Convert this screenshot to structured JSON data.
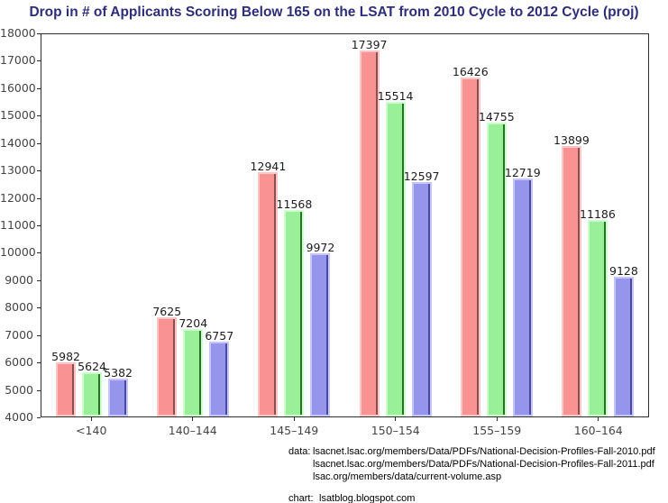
{
  "title": "Drop in # of Applicants Scoring Below 165 on the LSAT from 2010 Cycle to 2012 Cycle (proj)",
  "colors": {
    "title": "#2E2E78",
    "axis": "#2e2e2e",
    "tick_label": "#444444",
    "bar_value_label": "#1c1c1c"
  },
  "chart_data": {
    "type": "bar",
    "title": "Drop in # of Applicants Scoring Below 165 on the LSAT from 2010 Cycle to 2012 Cycle (proj)",
    "categories": [
      "<140",
      "140–144",
      "145–149",
      "150–154",
      "155–159",
      "160–164"
    ],
    "series": [
      {
        "name": "series-red",
        "fill": "#F99292",
        "border": "#FFC6C6",
        "shade": "#8A5050",
        "values": [
          5982,
          7625,
          12941,
          17397,
          16426,
          13899
        ]
      },
      {
        "name": "series-green",
        "fill": "#99F099",
        "border": "#CCFFCC",
        "shade": "#267326",
        "values": [
          5624,
          7204,
          11568,
          15514,
          14755,
          11186
        ]
      },
      {
        "name": "series-blue",
        "fill": "#9695EC",
        "border": "#C6C5FF",
        "shade": "#4B4A9E",
        "values": [
          5382,
          6757,
          9972,
          12597,
          12719,
          9128
        ]
      }
    ],
    "xlabel": "",
    "ylabel": "",
    "ylim": [
      4000,
      18000
    ],
    "ytick_step": 1000,
    "grid": false,
    "legend": false,
    "bar_labels": true
  },
  "footer": {
    "data_label": "data:",
    "data_lines": [
      "lsacnet.lsac.org/members/Data/PDFs/National-Decision-Profiles-Fall-2010.pdf",
      "lsacnet.lsac.org/members/Data/PDFs/National-Decision-Profiles-Fall-2011.pdf",
      "lsac.org/members/data/current-volume.asp"
    ],
    "chart_label": "chart:",
    "chart_line": "lsatblog.blogspot.com"
  }
}
